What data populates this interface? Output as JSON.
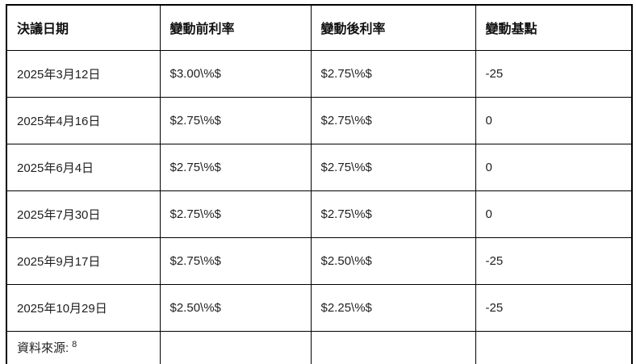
{
  "chart_data": {
    "type": "table",
    "columns": [
      "決議日期",
      "變動前利率",
      "變動後利率",
      "變動基點"
    ],
    "rows": [
      [
        "2025年3月12日",
        "$3.00\\%$",
        "$2.75\\%$",
        "-25"
      ],
      [
        "2025年4月16日",
        "$2.75\\%$",
        "$2.75\\%$",
        "0"
      ],
      [
        "2025年6月4日",
        "$2.75\\%$",
        "$2.75\\%$",
        "0"
      ],
      [
        "2025年7月30日",
        "$2.75\\%$",
        "$2.75\\%$",
        "0"
      ],
      [
        "2025年9月17日",
        "$2.75\\%$",
        "$2.50\\%$",
        "-25"
      ],
      [
        "2025年10月29日",
        "$2.50\\%$",
        "$2.25\\%$",
        "-25"
      ]
    ],
    "source_note": {
      "label": "資料來源:",
      "superscript": "8"
    },
    "layout": {
      "grid": "all-borders",
      "header_style": "bold"
    }
  },
  "colors": {
    "border": "#000000",
    "text": "#1f1f1f",
    "background": "#ffffff"
  }
}
